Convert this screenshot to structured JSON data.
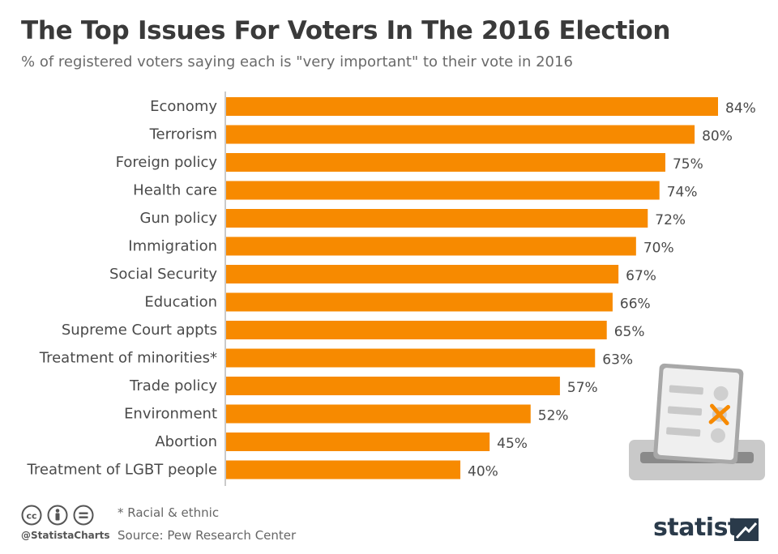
{
  "title": "The Top Issues For Voters In The 2016 Election",
  "subtitle": "% of registered voters saying each is \"very important\" to their vote in 2016",
  "footnote": "* Racial & ethnic",
  "source": "Source: Pew Research Center",
  "handle": "@StatistaCharts",
  "brand": "statista",
  "colors": {
    "bar": "#f78a00",
    "axis": "#b8b8b8",
    "label": "#4a4a4a"
  },
  "chart_data": {
    "type": "bar",
    "orientation": "horizontal",
    "title": "The Top Issues For Voters In The 2016 Election",
    "xlabel": "",
    "ylabel": "",
    "xlim": [
      0,
      84
    ],
    "value_suffix": "%",
    "categories": [
      "Economy",
      "Terrorism",
      "Foreign policy",
      "Health care",
      "Gun policy",
      "Immigration",
      "Social Security",
      "Education",
      "Supreme Court appts",
      "Treatment of minorities*",
      "Trade policy",
      "Environment",
      "Abortion",
      "Treatment of LGBT people"
    ],
    "values": [
      84,
      80,
      75,
      74,
      72,
      70,
      67,
      66,
      65,
      63,
      57,
      52,
      45,
      40
    ]
  }
}
